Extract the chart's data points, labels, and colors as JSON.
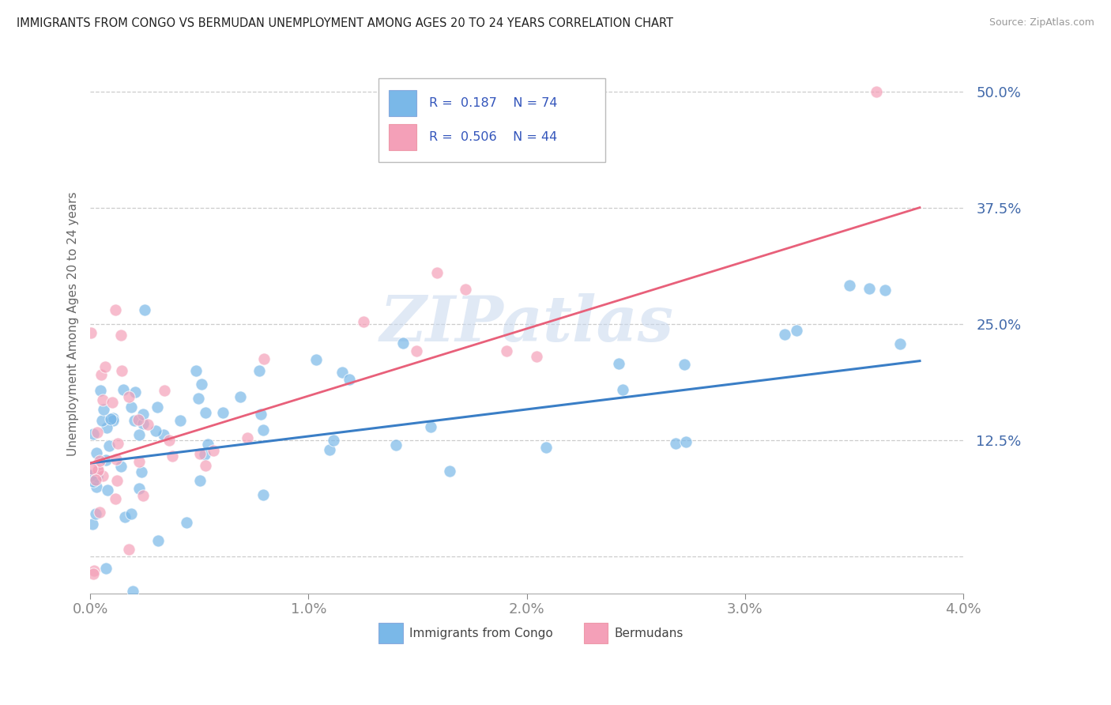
{
  "title": "IMMIGRANTS FROM CONGO VS BERMUDAN UNEMPLOYMENT AMONG AGES 20 TO 24 YEARS CORRELATION CHART",
  "source": "Source: ZipAtlas.com",
  "ylabel": "Unemployment Among Ages 20 to 24 years",
  "xlim": [
    0.0,
    0.04
  ],
  "ylim": [
    -0.04,
    0.54
  ],
  "yticks": [
    0.0,
    0.125,
    0.25,
    0.375,
    0.5
  ],
  "ytick_labels": [
    "",
    "12.5%",
    "25.0%",
    "37.5%",
    "50.0%"
  ],
  "xticks": [
    0.0,
    0.01,
    0.02,
    0.03,
    0.04
  ],
  "xtick_labels": [
    "0.0%",
    "1.0%",
    "2.0%",
    "3.0%",
    "4.0%"
  ],
  "blue_R": 0.187,
  "blue_N": 74,
  "pink_R": 0.506,
  "pink_N": 44,
  "blue_color": "#7ab8e8",
  "pink_color": "#f4a0b8",
  "blue_line_color": "#3a7ec6",
  "pink_line_color": "#e8607a",
  "legend_label_blue": "Immigrants from Congo",
  "legend_label_pink": "Bermudans",
  "watermark": "ZIPatlas",
  "blue_line_x0": 0.0,
  "blue_line_y0": 0.1,
  "blue_line_x1": 0.038,
  "blue_line_y1": 0.21,
  "pink_line_x0": 0.0,
  "pink_line_y0": 0.1,
  "pink_line_x1": 0.038,
  "pink_line_y1": 0.375
}
